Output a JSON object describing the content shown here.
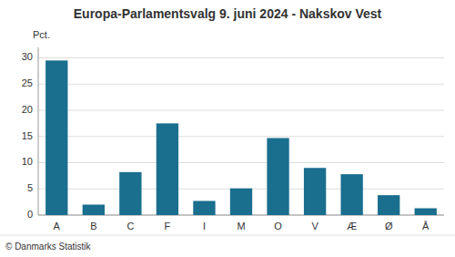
{
  "chart_data": {
    "type": "bar",
    "title": "Europa-Parlamentsvalg 9. juni 2024 - Nakskov Vest",
    "ylabel": "Pct.",
    "footer": "© Danmarks Statistik",
    "categories": [
      "A",
      "B",
      "C",
      "F",
      "I",
      "M",
      "O",
      "V",
      "Æ",
      "Ø",
      "Å"
    ],
    "values": [
      29.5,
      2.0,
      8.2,
      17.5,
      2.7,
      5.1,
      14.7,
      9.0,
      7.8,
      3.8,
      1.3
    ],
    "color": "#1a6e8e",
    "ylim": [
      0,
      32
    ],
    "yticks": [
      0,
      5,
      10,
      15,
      20,
      25,
      30
    ],
    "grid": true
  }
}
